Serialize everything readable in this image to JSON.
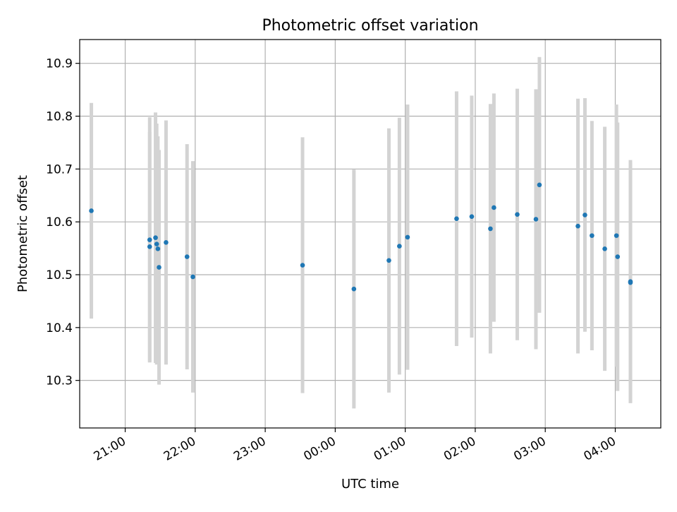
{
  "chart_data": {
    "type": "scatter",
    "title": "Photometric offset variation",
    "xlabel": "UTC time",
    "ylabel": "Photometric offset",
    "x_ticks": [
      "21:00",
      "22:00",
      "23:00",
      "00:00",
      "01:00",
      "02:00",
      "03:00",
      "04:00"
    ],
    "y_ticks": [
      "10.3",
      "10.4",
      "10.5",
      "10.6",
      "10.7",
      "10.8",
      "10.9"
    ],
    "xlim": [
      "20:21",
      "04:39"
    ],
    "ylim": [
      10.21,
      10.945
    ],
    "grid": true,
    "colors": {
      "points": "#1f77b4",
      "errorbars": "#d3d3d3",
      "grid": "#b0b0b0"
    },
    "points": [
      {
        "t": "20:31",
        "y": 10.621,
        "err": 0.204
      },
      {
        "t": "21:21",
        "y": 10.566,
        "err": 0.232
      },
      {
        "t": "21:21",
        "y": 10.553,
        "err": 0.217
      },
      {
        "t": "21:26",
        "y": 10.57,
        "err": 0.237
      },
      {
        "t": "21:27",
        "y": 10.558,
        "err": 0.228
      },
      {
        "t": "21:28",
        "y": 10.549,
        "err": 0.213
      },
      {
        "t": "21:29",
        "y": 10.514,
        "err": 0.222
      },
      {
        "t": "21:35",
        "y": 10.561,
        "err": 0.231
      },
      {
        "t": "21:53",
        "y": 10.534,
        "err": 0.213
      },
      {
        "t": "21:58",
        "y": 10.496,
        "err": 0.219
      },
      {
        "t": "23:32",
        "y": 10.518,
        "err": 0.242
      },
      {
        "t": "00:16",
        "y": 10.473,
        "err": 0.226
      },
      {
        "t": "00:46",
        "y": 10.527,
        "err": 0.25
      },
      {
        "t": "00:55",
        "y": 10.554,
        "err": 0.243
      },
      {
        "t": "01:02",
        "y": 10.571,
        "err": 0.251
      },
      {
        "t": "01:44",
        "y": 10.606,
        "err": 0.241
      },
      {
        "t": "01:57",
        "y": 10.61,
        "err": 0.229
      },
      {
        "t": "02:13",
        "y": 10.587,
        "err": 0.236
      },
      {
        "t": "02:16",
        "y": 10.627,
        "err": 0.216
      },
      {
        "t": "02:36",
        "y": 10.614,
        "err": 0.238
      },
      {
        "t": "02:52",
        "y": 10.605,
        "err": 0.246
      },
      {
        "t": "02:55",
        "y": 10.67,
        "err": 0.242
      },
      {
        "t": "03:28",
        "y": 10.592,
        "err": 0.241
      },
      {
        "t": "03:34",
        "y": 10.613,
        "err": 0.221
      },
      {
        "t": "03:40",
        "y": 10.574,
        "err": 0.217
      },
      {
        "t": "03:51",
        "y": 10.549,
        "err": 0.231
      },
      {
        "t": "04:01",
        "y": 10.574,
        "err": 0.248
      },
      {
        "t": "04:02",
        "y": 10.534,
        "err": 0.254
      },
      {
        "t": "04:13",
        "y": 10.487,
        "err": 0.23
      },
      {
        "t": "04:13",
        "y": 10.485,
        "err": 0.227
      }
    ]
  }
}
